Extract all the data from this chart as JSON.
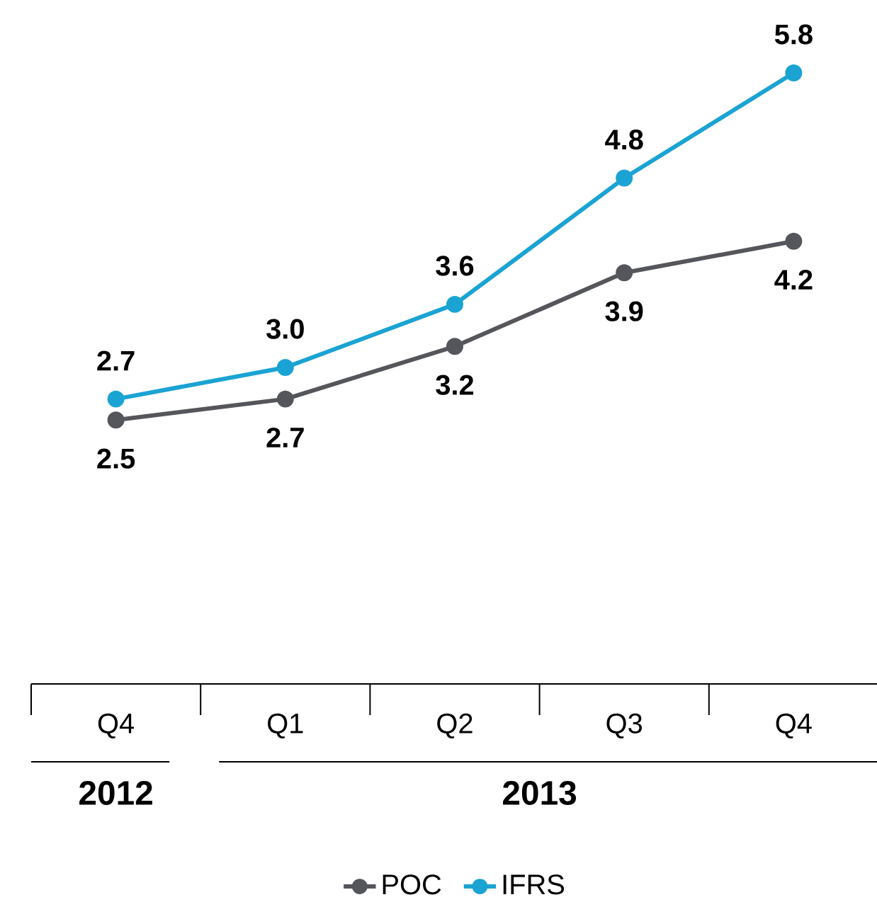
{
  "chart_data": {
    "type": "line",
    "categories": [
      "Q4",
      "Q1",
      "Q2",
      "Q3",
      "Q4"
    ],
    "series": [
      {
        "name": "POC",
        "color": "#55565b",
        "values": [
          2.5,
          2.7,
          3.2,
          3.9,
          4.2
        ],
        "value_labels": [
          "2.5",
          "2.7",
          "3.2",
          "3.9",
          "4.2"
        ]
      },
      {
        "name": "IFRS",
        "color": "#1aa3d3",
        "values": [
          2.7,
          3.0,
          3.6,
          4.8,
          5.8
        ],
        "value_labels": [
          "2.7",
          "3.0",
          "3.6",
          "4.8",
          "5.8"
        ]
      }
    ],
    "legend": "bottom",
    "marker": "circle",
    "line_style": "solid",
    "annotations": [
      "2012",
      "2013"
    ]
  }
}
